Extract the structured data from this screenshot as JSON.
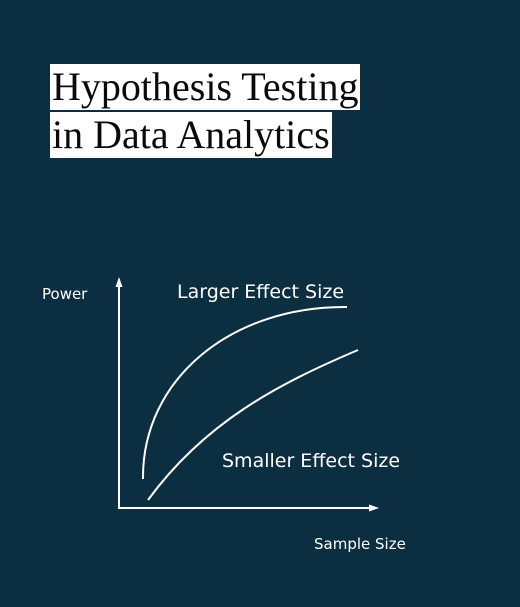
{
  "title": {
    "line1": "Hypothesis Testing",
    "line2": "in Data Analytics"
  },
  "diagram": {
    "y_axis_label": "Power",
    "x_axis_label": "Sample Size",
    "curve_large_label": "Larger Effect Size",
    "curve_small_label": "Smaller Effect Size"
  },
  "colors": {
    "background": "#0b2e41",
    "line": "#ffffff",
    "title_box": "#ffffff",
    "title_text": "#0a0a0a"
  }
}
